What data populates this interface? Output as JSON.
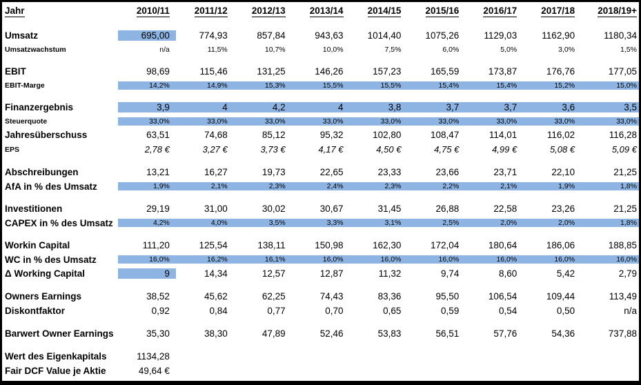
{
  "sheet": {
    "highlight_color": "#8DB4E2",
    "header": {
      "label": "Jahr",
      "years": [
        "2010/11",
        "2011/12",
        "2012/13",
        "2013/14",
        "2014/15",
        "2015/16",
        "2016/17",
        "2017/18",
        "2018/19+"
      ]
    },
    "rows": [
      {
        "id": "spacer-top",
        "kind": "spacer"
      },
      {
        "id": "umsatz",
        "kind": "main",
        "label": "Umsatz",
        "highlight": "first",
        "values": [
          "695,00",
          "774,93",
          "857,84",
          "943,63",
          "1014,40",
          "1075,26",
          "1129,03",
          "1162,90",
          "1180,34"
        ]
      },
      {
        "id": "umsatzwachstum",
        "kind": "sub",
        "label": "Umsatzwachstum",
        "highlight": "none",
        "values": [
          "n/a",
          "11,5%",
          "10,7%",
          "10,0%",
          "7,5%",
          "6,0%",
          "5,0%",
          "3,0%",
          "1,5%"
        ]
      },
      {
        "id": "spacer-1",
        "kind": "spacer"
      },
      {
        "id": "ebit",
        "kind": "main",
        "label": "EBIT",
        "highlight": "none",
        "values": [
          "98,69",
          "115,46",
          "131,25",
          "146,26",
          "157,23",
          "165,59",
          "173,87",
          "176,76",
          "177,05"
        ]
      },
      {
        "id": "ebit-marge",
        "kind": "sub",
        "label": "EBIT-Marge",
        "highlight": "all",
        "values": [
          "14,2%",
          "14,9%",
          "15,3%",
          "15,5%",
          "15,5%",
          "15,4%",
          "15,4%",
          "15,2%",
          "15,0%"
        ]
      },
      {
        "id": "spacer-2",
        "kind": "spacer"
      },
      {
        "id": "finanzergebnis",
        "kind": "main",
        "label": "Finanzergebnis",
        "highlight": "all",
        "values": [
          "3,9",
          "4",
          "4,2",
          "4",
          "3,8",
          "3,7",
          "3,7",
          "3,6",
          "3,5"
        ]
      },
      {
        "id": "steuerquote",
        "kind": "sub",
        "label": "Steuerquote",
        "highlight": "all",
        "values": [
          "33,0%",
          "33,0%",
          "33,0%",
          "33,0%",
          "33,0%",
          "33,0%",
          "33,0%",
          "33,0%",
          "33,0%"
        ]
      },
      {
        "id": "jahresueberschuss",
        "kind": "main",
        "label": "Jahresüberschuss",
        "highlight": "none",
        "values": [
          "63,51",
          "74,68",
          "85,12",
          "95,32",
          "102,80",
          "108,47",
          "114,01",
          "116,02",
          "116,28"
        ]
      },
      {
        "id": "eps",
        "kind": "eps",
        "label": "EPS",
        "highlight": "none",
        "values": [
          "2,78 €",
          "3,27 €",
          "3,73 €",
          "4,17 €",
          "4,50 €",
          "4,75 €",
          "4,99 €",
          "5,08 €",
          "5,09 €"
        ]
      },
      {
        "id": "spacer-3",
        "kind": "spacer"
      },
      {
        "id": "abschreibungen",
        "kind": "main",
        "label": "Abschreibungen",
        "highlight": "none",
        "values": [
          "13,21",
          "16,27",
          "19,73",
          "22,65",
          "23,33",
          "23,66",
          "23,71",
          "22,10",
          "21,25"
        ]
      },
      {
        "id": "afa-in-prozent",
        "kind": "mainpct",
        "label": "AfA in % des Umsatz",
        "highlight": "all",
        "values": [
          "1,9%",
          "2,1%",
          "2,3%",
          "2,4%",
          "2,3%",
          "2,2%",
          "2,1%",
          "1,9%",
          "1,8%"
        ]
      },
      {
        "id": "spacer-4",
        "kind": "spacer"
      },
      {
        "id": "investitionen",
        "kind": "main",
        "label": "Investitionen",
        "highlight": "none",
        "values": [
          "29,19",
          "31,00",
          "30,02",
          "30,67",
          "31,45",
          "26,88",
          "22,58",
          "23,26",
          "21,25"
        ]
      },
      {
        "id": "capex-in-prozent",
        "kind": "mainpct",
        "label": "CAPEX in % des Umsatz",
        "highlight": "all",
        "values": [
          "4,2%",
          "4,0%",
          "3,5%",
          "3,3%",
          "3,1%",
          "2,5%",
          "2,0%",
          "2,0%",
          "1,8%"
        ]
      },
      {
        "id": "spacer-5",
        "kind": "spacer"
      },
      {
        "id": "working-capital",
        "kind": "main",
        "label": "Workin Capital",
        "highlight": "none",
        "values": [
          "111,20",
          "125,54",
          "138,11",
          "150,98",
          "162,30",
          "172,04",
          "180,64",
          "186,06",
          "188,85"
        ]
      },
      {
        "id": "wc-in-prozent",
        "kind": "mainpct",
        "label": "WC in % des Umsatz",
        "highlight": "all",
        "values": [
          "16,0%",
          "16,2%",
          "16,1%",
          "16,0%",
          "16,0%",
          "16,0%",
          "16,0%",
          "16,0%",
          "16,0%"
        ]
      },
      {
        "id": "delta-working-capital",
        "kind": "main",
        "label": "Δ Working Capital",
        "highlight": "first",
        "values": [
          "9",
          "14,34",
          "12,57",
          "12,87",
          "11,32",
          "9,74",
          "8,60",
          "5,42",
          "2,79"
        ]
      },
      {
        "id": "spacer-6",
        "kind": "spacer"
      },
      {
        "id": "owners-earnings",
        "kind": "main",
        "label": "Owners Earnings",
        "highlight": "none",
        "values": [
          "38,52",
          "45,62",
          "62,25",
          "74,43",
          "83,36",
          "95,50",
          "106,54",
          "109,44",
          "113,49"
        ]
      },
      {
        "id": "diskontfaktor",
        "kind": "main",
        "label": "Diskontfaktor",
        "highlight": "none",
        "values": [
          "0,92",
          "0,84",
          "0,77",
          "0,70",
          "0,65",
          "0,59",
          "0,54",
          "0,50",
          "n/a"
        ]
      },
      {
        "id": "spacer-7",
        "kind": "spacer"
      },
      {
        "id": "barwert-owner-earnings",
        "kind": "main",
        "label": "Barwert Owner Earnings",
        "highlight": "none",
        "values": [
          "35,30",
          "38,30",
          "47,89",
          "52,46",
          "53,83",
          "56,51",
          "57,76",
          "54,36",
          "737,88"
        ]
      },
      {
        "id": "spacer-8",
        "kind": "spacer"
      },
      {
        "id": "wert-des-eigenkapitals",
        "kind": "main",
        "label": "Wert des Eigenkapitals",
        "highlight": "none",
        "values": [
          "1134,28",
          "",
          "",
          "",
          "",
          "",
          "",
          "",
          ""
        ]
      },
      {
        "id": "fair-dcf-value-je-aktie",
        "kind": "main",
        "label": "Fair DCF Value je Aktie",
        "highlight": "none",
        "values": [
          "49,64 €",
          "",
          "",
          "",
          "",
          "",
          "",
          "",
          ""
        ]
      }
    ]
  }
}
